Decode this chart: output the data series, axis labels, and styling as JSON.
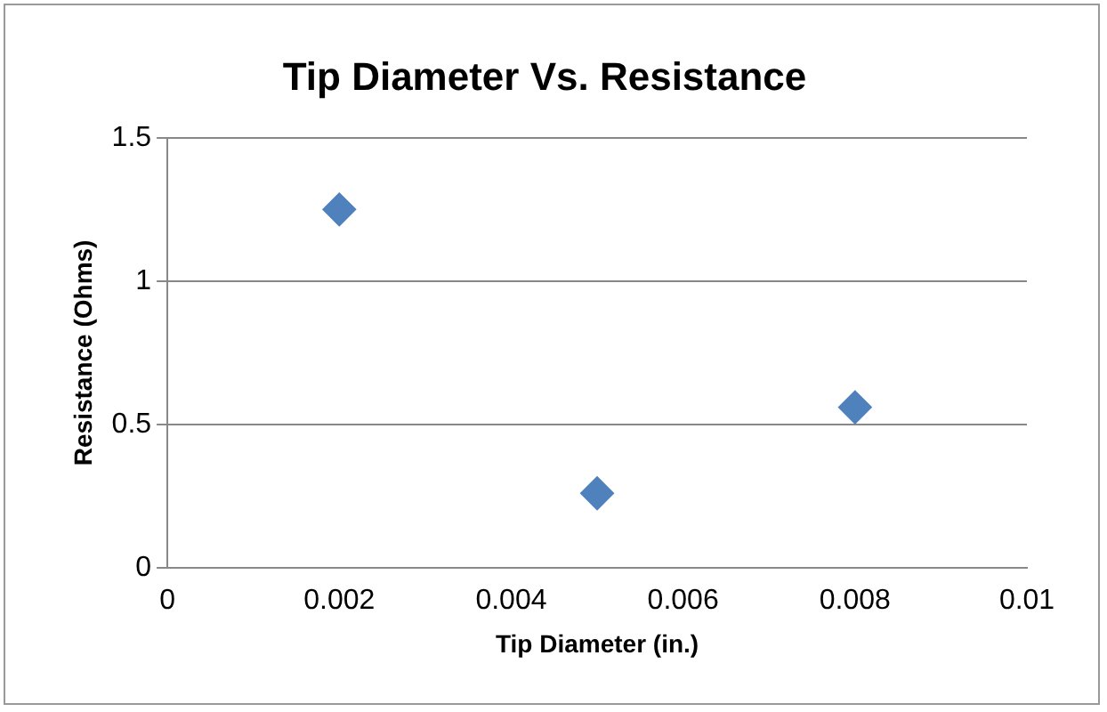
{
  "chart_data": {
    "type": "scatter",
    "title": "Tip Diameter Vs. Resistance",
    "xlabel": "Tip Diameter (in.)",
    "ylabel": "Resistance (Ohms)",
    "x": [
      0.002,
      0.005,
      0.008
    ],
    "values": [
      1.25,
      0.26,
      0.56
    ],
    "color": "#4f81bd",
    "xlim": [
      0,
      0.01
    ],
    "xticks": [
      0,
      0.002,
      0.004,
      0.006,
      0.008,
      0.01
    ],
    "ylim": [
      0,
      1.5
    ],
    "yticks": [
      0,
      0.5,
      1,
      1.5
    ],
    "grid": "y",
    "marker": "diamond"
  }
}
